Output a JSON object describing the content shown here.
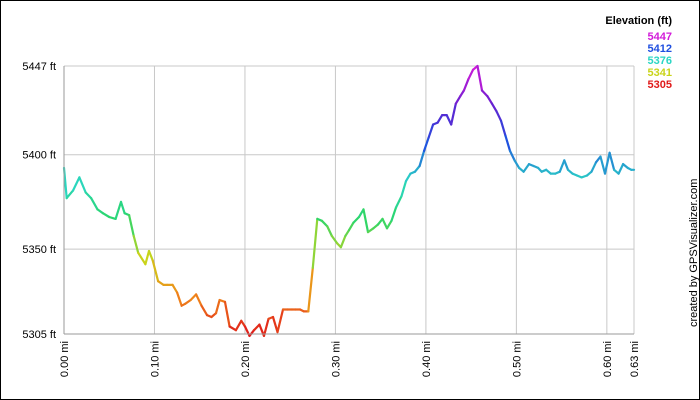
{
  "chart_data": {
    "type": "line",
    "legend": {
      "title": "Elevation (ft)",
      "entries": [
        {
          "label": "5447",
          "color": "#d21bd9"
        },
        {
          "label": "5412",
          "color": "#1f4fe0"
        },
        {
          "label": "5376",
          "color": "#2bd6c4"
        },
        {
          "label": "5341",
          "color": "#c9d41a"
        },
        {
          "label": "5305",
          "color": "#e01a1a"
        }
      ],
      "placement": "top-right"
    },
    "y_ticks": [
      {
        "value": 5305,
        "label": "5305 ft"
      },
      {
        "value": 5350,
        "label": "5350 ft"
      },
      {
        "value": 5400,
        "label": "5400 ft"
      },
      {
        "value": 5447,
        "label": "5447 ft"
      }
    ],
    "x_ticks": [
      {
        "value": 0.0,
        "label": "0.00 mi"
      },
      {
        "value": 0.1,
        "label": "0.10 mi"
      },
      {
        "value": 0.2,
        "label": "0.20 mi"
      },
      {
        "value": 0.3,
        "label": "0.30 mi"
      },
      {
        "value": 0.4,
        "label": "0.40 mi"
      },
      {
        "value": 0.5,
        "label": "0.50 mi"
      },
      {
        "value": 0.6,
        "label": "0.60 mi"
      },
      {
        "value": 0.63,
        "label": "0.63 mi"
      }
    ],
    "xlim": [
      0,
      0.63
    ],
    "ylim": [
      5305,
      5447
    ],
    "grid": true,
    "credit": "created by GPSVisualizer.com",
    "color_scale": {
      "min": 5305,
      "max": 5447,
      "stops": [
        "#e01a1a",
        "#f08a1a",
        "#c9d41a",
        "#2bd66a",
        "#2bd6c4",
        "#1f4fe0",
        "#6a1fd0",
        "#d21bd9"
      ]
    },
    "series": [
      {
        "x": [
          0.0,
          0.003,
          0.01,
          0.017,
          0.024,
          0.03,
          0.037,
          0.043,
          0.05,
          0.057,
          0.063,
          0.067,
          0.072,
          0.077,
          0.082,
          0.09,
          0.094,
          0.098,
          0.104,
          0.11,
          0.114,
          0.12,
          0.125,
          0.13,
          0.134,
          0.14,
          0.146,
          0.152,
          0.158,
          0.163,
          0.168,
          0.172,
          0.178,
          0.183,
          0.19,
          0.196,
          0.2,
          0.205,
          0.21,
          0.216,
          0.221,
          0.226,
          0.231,
          0.236,
          0.242,
          0.247,
          0.252,
          0.256,
          0.261,
          0.265,
          0.27,
          0.275,
          0.28,
          0.285,
          0.291,
          0.296,
          0.302,
          0.306,
          0.311,
          0.315,
          0.32,
          0.326,
          0.331,
          0.336,
          0.342,
          0.347,
          0.352,
          0.357,
          0.362,
          0.367,
          0.373,
          0.378,
          0.383,
          0.388,
          0.393,
          0.398,
          0.403,
          0.408,
          0.413,
          0.418,
          0.423,
          0.428,
          0.433,
          0.438,
          0.442,
          0.447,
          0.452,
          0.457,
          0.462,
          0.468,
          0.473,
          0.478,
          0.483,
          0.488,
          0.493,
          0.498,
          0.503,
          0.508,
          0.514,
          0.519,
          0.524,
          0.528,
          0.533,
          0.538,
          0.543,
          0.548,
          0.553,
          0.557,
          0.562,
          0.567,
          0.572,
          0.578,
          0.583,
          0.588,
          0.593,
          0.598,
          0.603,
          0.608,
          0.613,
          0.618,
          0.623,
          0.627,
          0.63
        ],
        "y": [
          5393,
          5377,
          5381,
          5388,
          5380,
          5377,
          5371,
          5369,
          5367,
          5366,
          5375,
          5369,
          5368,
          5357,
          5348,
          5342,
          5349,
          5344,
          5333,
          5331,
          5331,
          5331,
          5327,
          5320,
          5321,
          5323,
          5326,
          5320,
          5315,
          5314,
          5316,
          5323,
          5322,
          5309,
          5307,
          5312,
          5309,
          5304,
          5307,
          5310,
          5304,
          5313,
          5314,
          5306,
          5318,
          5318,
          5318,
          5318,
          5318,
          5317,
          5317,
          5340,
          5366,
          5365,
          5362,
          5357,
          5353,
          5351,
          5357,
          5360,
          5364,
          5367,
          5371,
          5359,
          5361,
          5363,
          5366,
          5361,
          5365,
          5372,
          5378,
          5386,
          5390,
          5391,
          5394,
          5402,
          5409,
          5416,
          5417,
          5421,
          5421,
          5416,
          5427,
          5431,
          5434,
          5440,
          5445,
          5447,
          5434,
          5431,
          5427,
          5423,
          5418,
          5410,
          5402,
          5397,
          5393,
          5391,
          5395,
          5394,
          5393,
          5391,
          5392,
          5390,
          5390,
          5391,
          5397,
          5392,
          5390,
          5389,
          5388,
          5389,
          5391,
          5396,
          5399,
          5390,
          5401,
          5392,
          5390,
          5395,
          5393,
          5392,
          5392
        ]
      }
    ]
  }
}
